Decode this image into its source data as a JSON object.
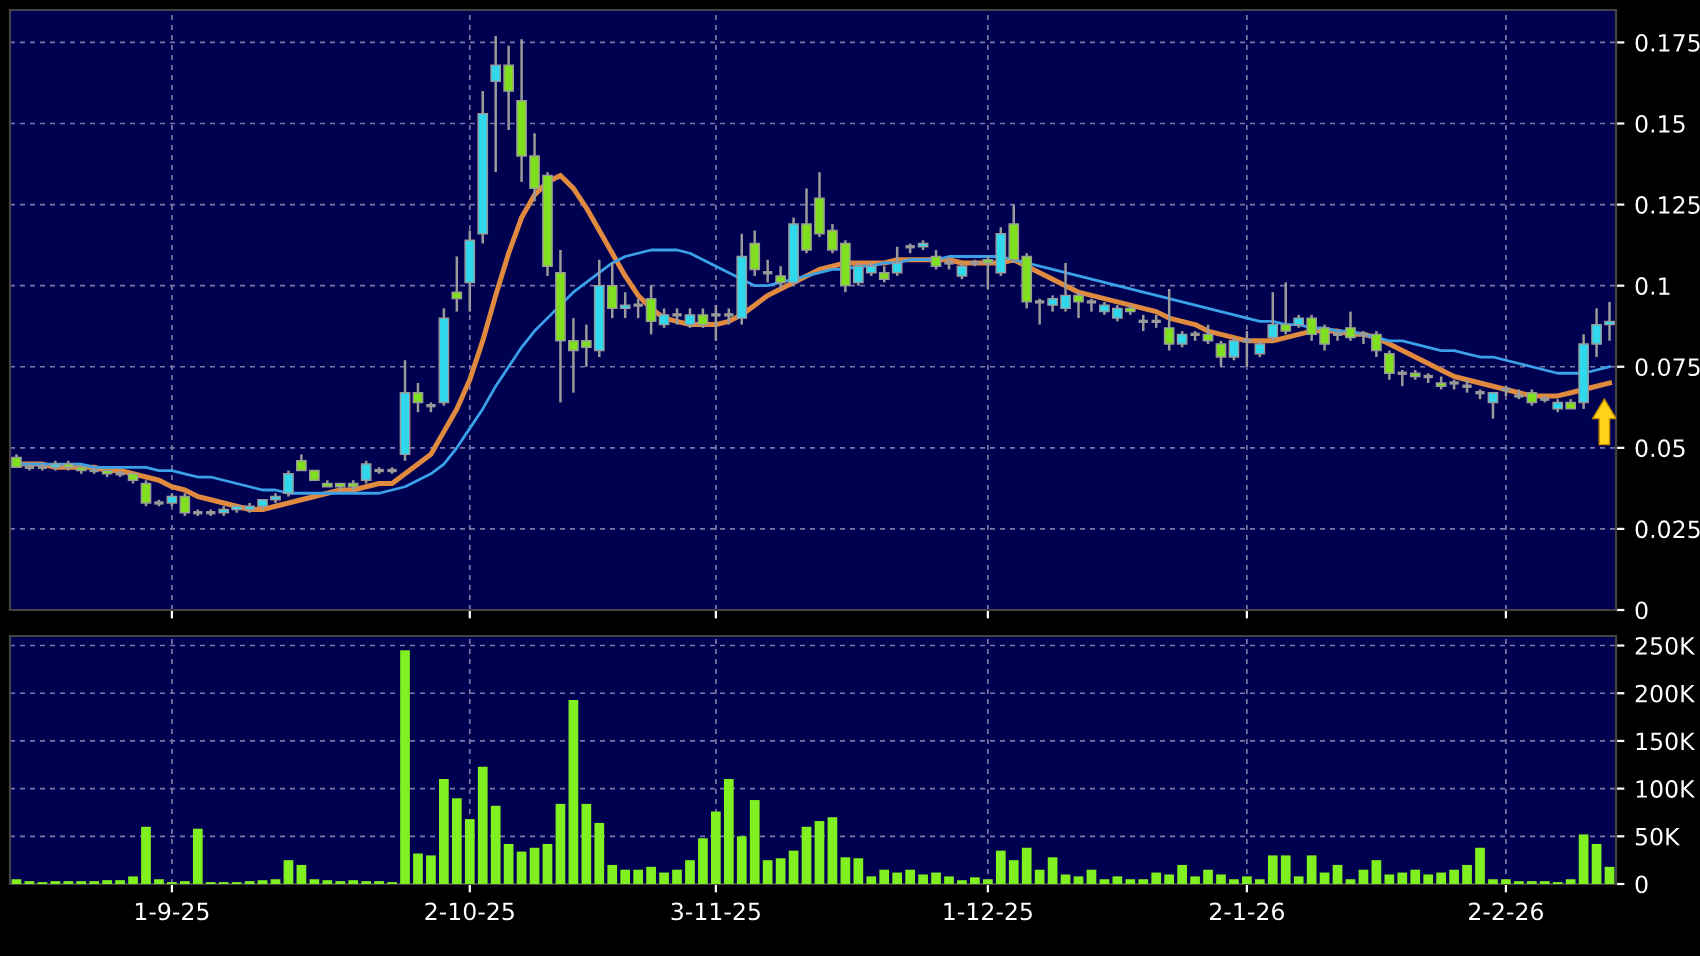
{
  "chart_data": [
    {
      "type": "candlestick",
      "categories": [
        null,
        null,
        null,
        null,
        null,
        null,
        null,
        null,
        null,
        null,
        null,
        null,
        null,
        null,
        null,
        null,
        null,
        null,
        null,
        null,
        null,
        null,
        null,
        null,
        null,
        null,
        null,
        null,
        null,
        null,
        null,
        null,
        null,
        null,
        null,
        null,
        null,
        null,
        null,
        null,
        null,
        null,
        null,
        null,
        null,
        null,
        null,
        null,
        null,
        null,
        null,
        null,
        null,
        null,
        null,
        null,
        null,
        null,
        null,
        null,
        null,
        null,
        null,
        null,
        null,
        null,
        null,
        null,
        null,
        null,
        null,
        null,
        null,
        null,
        null,
        null,
        null,
        null,
        null,
        null,
        null,
        null,
        null,
        null,
        null,
        null,
        null,
        null,
        null,
        null,
        null,
        null,
        null,
        null,
        null,
        null,
        null,
        null,
        null,
        null,
        null,
        null,
        null,
        null,
        null,
        null,
        null,
        null,
        null,
        null,
        null,
        null,
        null,
        null,
        null,
        null,
        null,
        null,
        null,
        null,
        null,
        null,
        null,
        null
      ],
      "ohlc": [
        [
          0.047,
          0.048,
          0.044,
          0.044
        ],
        [
          0.044,
          0.045,
          0.043,
          0.044
        ],
        [
          0.044,
          0.045,
          0.043,
          0.044
        ],
        [
          0.044,
          0.046,
          0.043,
          0.045
        ],
        [
          0.045,
          0.046,
          0.043,
          0.044
        ],
        [
          0.044,
          0.044,
          0.042,
          0.043
        ],
        [
          0.043,
          0.044,
          0.042,
          0.043
        ],
        [
          0.043,
          0.043,
          0.041,
          0.042
        ],
        [
          0.042,
          0.043,
          0.041,
          0.042
        ],
        [
          0.042,
          0.042,
          0.039,
          0.04
        ],
        [
          0.039,
          0.04,
          0.032,
          0.033
        ],
        [
          0.033,
          0.034,
          0.032,
          0.033
        ],
        [
          0.033,
          0.036,
          0.032,
          0.035
        ],
        [
          0.035,
          0.036,
          0.029,
          0.03
        ],
        [
          0.03,
          0.031,
          0.029,
          0.03
        ],
        [
          0.03,
          0.031,
          0.029,
          0.03
        ],
        [
          0.03,
          0.032,
          0.029,
          0.031
        ],
        [
          0.031,
          0.032,
          0.03,
          0.032
        ],
        [
          0.031,
          0.033,
          0.03,
          0.032
        ],
        [
          0.032,
          0.034,
          0.031,
          0.034
        ],
        [
          0.034,
          0.036,
          0.033,
          0.035
        ],
        [
          0.036,
          0.043,
          0.035,
          0.042
        ],
        [
          0.046,
          0.048,
          0.043,
          0.043
        ],
        [
          0.043,
          0.043,
          0.04,
          0.04
        ],
        [
          0.039,
          0.04,
          0.038,
          0.038
        ],
        [
          0.039,
          0.039,
          0.037,
          0.038
        ],
        [
          0.039,
          0.04,
          0.037,
          0.038
        ],
        [
          0.04,
          0.046,
          0.039,
          0.045
        ],
        [
          0.043,
          0.044,
          0.042,
          0.043
        ],
        [
          0.043,
          0.044,
          0.042,
          0.043
        ],
        [
          0.048,
          0.077,
          0.046,
          0.067
        ],
        [
          0.067,
          0.07,
          0.061,
          0.064
        ],
        [
          0.063,
          0.064,
          0.061,
          0.063
        ],
        [
          0.064,
          0.093,
          0.063,
          0.09
        ],
        [
          0.098,
          0.109,
          0.092,
          0.096
        ],
        [
          0.101,
          0.117,
          0.092,
          0.114
        ],
        [
          0.116,
          0.16,
          0.113,
          0.153
        ],
        [
          0.163,
          0.177,
          0.135,
          0.168
        ],
        [
          0.168,
          0.174,
          0.148,
          0.16
        ],
        [
          0.157,
          0.176,
          0.132,
          0.14
        ],
        [
          0.14,
          0.147,
          0.126,
          0.13
        ],
        [
          0.134,
          0.135,
          0.103,
          0.106
        ],
        [
          0.104,
          0.111,
          0.064,
          0.083
        ],
        [
          0.083,
          0.09,
          0.067,
          0.08
        ],
        [
          0.083,
          0.088,
          0.075,
          0.081
        ],
        [
          0.08,
          0.108,
          0.078,
          0.1
        ],
        [
          0.1,
          0.107,
          0.09,
          0.093
        ],
        [
          0.093,
          0.098,
          0.09,
          0.094
        ],
        [
          0.094,
          0.096,
          0.09,
          0.094
        ],
        [
          0.096,
          0.1,
          0.085,
          0.089
        ],
        [
          0.088,
          0.093,
          0.087,
          0.091
        ],
        [
          0.091,
          0.093,
          0.088,
          0.091
        ],
        [
          0.088,
          0.093,
          0.087,
          0.091
        ],
        [
          0.091,
          0.093,
          0.087,
          0.088
        ],
        [
          0.091,
          0.094,
          0.083,
          0.091
        ],
        [
          0.091,
          0.093,
          0.088,
          0.091
        ],
        [
          0.09,
          0.116,
          0.088,
          0.109
        ],
        [
          0.113,
          0.117,
          0.103,
          0.105
        ],
        [
          0.104,
          0.108,
          0.101,
          0.104
        ],
        [
          0.103,
          0.106,
          0.099,
          0.101
        ],
        [
          0.101,
          0.121,
          0.1,
          0.119
        ],
        [
          0.119,
          0.13,
          0.11,
          0.111
        ],
        [
          0.127,
          0.135,
          0.115,
          0.116
        ],
        [
          0.117,
          0.119,
          0.11,
          0.111
        ],
        [
          0.113,
          0.114,
          0.098,
          0.1
        ],
        [
          0.101,
          0.107,
          0.1,
          0.106
        ],
        [
          0.104,
          0.107,
          0.103,
          0.106
        ],
        [
          0.104,
          0.106,
          0.101,
          0.102
        ],
        [
          0.104,
          0.112,
          0.103,
          0.107
        ],
        [
          0.112,
          0.113,
          0.11,
          0.112
        ],
        [
          0.112,
          0.114,
          0.111,
          0.113
        ],
        [
          0.109,
          0.111,
          0.105,
          0.106
        ],
        [
          0.107,
          0.109,
          0.105,
          0.107
        ],
        [
          0.103,
          0.107,
          0.102,
          0.106
        ],
        [
          0.107,
          0.108,
          0.106,
          0.107
        ],
        [
          0.108,
          0.109,
          0.099,
          0.107
        ],
        [
          0.104,
          0.118,
          0.103,
          0.116
        ],
        [
          0.119,
          0.125,
          0.107,
          0.108
        ],
        [
          0.109,
          0.11,
          0.093,
          0.095
        ],
        [
          0.095,
          0.096,
          0.088,
          0.095
        ],
        [
          0.094,
          0.097,
          0.092,
          0.096
        ],
        [
          0.093,
          0.107,
          0.092,
          0.097
        ],
        [
          0.097,
          0.098,
          0.09,
          0.095
        ],
        [
          0.095,
          0.096,
          0.092,
          0.095
        ],
        [
          0.092,
          0.095,
          0.091,
          0.094
        ],
        [
          0.09,
          0.094,
          0.089,
          0.093
        ],
        [
          0.093,
          0.094,
          0.091,
          0.092
        ],
        [
          0.089,
          0.091,
          0.086,
          0.089
        ],
        [
          0.089,
          0.091,
          0.087,
          0.089
        ],
        [
          0.087,
          0.099,
          0.08,
          0.082
        ],
        [
          0.082,
          0.086,
          0.081,
          0.085
        ],
        [
          0.085,
          0.086,
          0.083,
          0.085
        ],
        [
          0.085,
          0.088,
          0.082,
          0.083
        ],
        [
          0.082,
          0.083,
          0.075,
          0.078
        ],
        [
          0.078,
          0.084,
          0.077,
          0.083
        ],
        [
          0.083,
          0.086,
          0.075,
          0.083
        ],
        [
          0.079,
          0.083,
          0.078,
          0.082
        ],
        [
          0.084,
          0.098,
          0.083,
          0.088
        ],
        [
          0.088,
          0.101,
          0.085,
          0.086
        ],
        [
          0.088,
          0.091,
          0.087,
          0.09
        ],
        [
          0.09,
          0.091,
          0.083,
          0.085
        ],
        [
          0.087,
          0.088,
          0.08,
          0.082
        ],
        [
          0.085,
          0.086,
          0.083,
          0.085
        ],
        [
          0.087,
          0.092,
          0.083,
          0.084
        ],
        [
          0.085,
          0.086,
          0.082,
          0.085
        ],
        [
          0.085,
          0.086,
          0.078,
          0.08
        ],
        [
          0.079,
          0.08,
          0.071,
          0.073
        ],
        [
          0.073,
          0.074,
          0.069,
          0.073
        ],
        [
          0.073,
          0.074,
          0.071,
          0.072
        ],
        [
          0.072,
          0.073,
          0.07,
          0.072
        ],
        [
          0.07,
          0.072,
          0.068,
          0.069
        ],
        [
          0.07,
          0.071,
          0.068,
          0.07
        ],
        [
          0.069,
          0.071,
          0.067,
          0.069
        ],
        [
          0.067,
          0.068,
          0.065,
          0.067
        ],
        [
          0.064,
          0.067,
          0.059,
          0.067
        ],
        [
          0.068,
          0.069,
          0.066,
          0.068
        ],
        [
          0.066,
          0.068,
          0.065,
          0.066
        ],
        [
          0.067,
          0.068,
          0.063,
          0.064
        ],
        [
          0.065,
          0.066,
          0.064,
          0.065
        ],
        [
          0.062,
          0.065,
          0.061,
          0.064
        ],
        [
          0.064,
          0.065,
          0.062,
          0.062
        ],
        [
          0.064,
          0.085,
          0.062,
          0.082
        ],
        [
          0.082,
          0.093,
          0.078,
          0.088
        ],
        [
          0.088,
          0.095,
          0.083,
          0.089
        ]
      ],
      "colors": [
        "#80e020",
        "#999999",
        "#999999",
        "#30d8ee",
        "#80e020",
        "#80e020",
        "#999999",
        "#80e020",
        "#999999",
        "#80e020",
        "#80e020",
        "#999999",
        "#30d8ee",
        "#80e020",
        "#999999",
        "#999999",
        "#30d8ee",
        "#30d8ee",
        "#30d8ee",
        "#30d8ee",
        "#30d8ee",
        "#30d8ee",
        "#80e020",
        "#80e020",
        "#80e020",
        "#80e020",
        "#80e020",
        "#30d8ee",
        "#999999",
        "#999999",
        "#30d8ee",
        "#80e020",
        "#999999",
        "#30d8ee",
        "#80e020",
        "#30d8ee",
        "#30d8ee",
        "#30d8ee",
        "#80e020",
        "#80e020",
        "#80e020",
        "#80e020",
        "#80e020",
        "#80e020",
        "#80e020",
        "#30d8ee",
        "#80e020",
        "#30d8ee",
        "#999999",
        "#80e020",
        "#30d8ee",
        "#999999",
        "#30d8ee",
        "#80e020",
        "#999999",
        "#999999",
        "#30d8ee",
        "#80e020",
        "#999999",
        "#80e020",
        "#30d8ee",
        "#80e020",
        "#80e020",
        "#80e020",
        "#80e020",
        "#30d8ee",
        "#30d8ee",
        "#80e020",
        "#30d8ee",
        "#999999",
        "#30d8ee",
        "#80e020",
        "#999999",
        "#30d8ee",
        "#999999",
        "#80e020",
        "#30d8ee",
        "#80e020",
        "#80e020",
        "#999999",
        "#30d8ee",
        "#30d8ee",
        "#80e020",
        "#999999",
        "#30d8ee",
        "#30d8ee",
        "#80e020",
        "#999999",
        "#999999",
        "#80e020",
        "#30d8ee",
        "#999999",
        "#80e020",
        "#80e020",
        "#30d8ee",
        "#999999",
        "#30d8ee",
        "#30d8ee",
        "#80e020",
        "#30d8ee",
        "#80e020",
        "#80e020",
        "#999999",
        "#80e020",
        "#999999",
        "#80e020",
        "#80e020",
        "#999999",
        "#80e020",
        "#999999",
        "#80e020",
        "#999999",
        "#999999",
        "#999999",
        "#30d8ee",
        "#999999",
        "#999999",
        "#80e020",
        "#999999",
        "#30d8ee",
        "#80e020",
        "#30d8ee",
        "#30d8ee",
        "#30d8ee"
      ],
      "series": [
        {
          "type": "line",
          "color": "#e08a40",
          "values": [
            0.045,
            0.045,
            0.045,
            0.044,
            0.044,
            0.044,
            0.044,
            0.043,
            0.043,
            0.042,
            0.041,
            0.04,
            0.038,
            0.037,
            0.035,
            0.034,
            0.033,
            0.032,
            0.031,
            0.031,
            0.032,
            0.033,
            0.034,
            0.035,
            0.036,
            0.037,
            0.037,
            0.038,
            0.039,
            0.039,
            0.042,
            0.045,
            0.048,
            0.055,
            0.062,
            0.071,
            0.083,
            0.097,
            0.11,
            0.121,
            0.128,
            0.132,
            0.134,
            0.13,
            0.124,
            0.117,
            0.11,
            0.103,
            0.097,
            0.093,
            0.09,
            0.089,
            0.088,
            0.088,
            0.088,
            0.089,
            0.091,
            0.094,
            0.097,
            0.099,
            0.101,
            0.103,
            0.105,
            0.106,
            0.107,
            0.107,
            0.107,
            0.107,
            0.108,
            0.108,
            0.108,
            0.108,
            0.108,
            0.107,
            0.107,
            0.107,
            0.107,
            0.108,
            0.106,
            0.104,
            0.102,
            0.1,
            0.098,
            0.097,
            0.096,
            0.095,
            0.094,
            0.093,
            0.092,
            0.09,
            0.089,
            0.088,
            0.086,
            0.085,
            0.084,
            0.083,
            0.083,
            0.083,
            0.084,
            0.085,
            0.086,
            0.086,
            0.086,
            0.085,
            0.085,
            0.084,
            0.082,
            0.08,
            0.078,
            0.076,
            0.074,
            0.072,
            0.071,
            0.07,
            0.069,
            0.068,
            0.067,
            0.066,
            0.066,
            0.066,
            0.067,
            0.068,
            0.069,
            0.07
          ]
        },
        {
          "type": "line",
          "color": "#3aa0e8",
          "values": [
            0.045,
            0.045,
            0.045,
            0.045,
            0.045,
            0.045,
            0.044,
            0.044,
            0.044,
            0.044,
            0.044,
            0.043,
            0.043,
            0.042,
            0.041,
            0.041,
            0.04,
            0.039,
            0.038,
            0.037,
            0.037,
            0.036,
            0.036,
            0.036,
            0.036,
            0.036,
            0.036,
            0.036,
            0.036,
            0.037,
            0.038,
            0.04,
            0.042,
            0.045,
            0.05,
            0.056,
            0.062,
            0.069,
            0.075,
            0.081,
            0.086,
            0.09,
            0.094,
            0.098,
            0.101,
            0.104,
            0.107,
            0.109,
            0.11,
            0.111,
            0.111,
            0.111,
            0.11,
            0.108,
            0.106,
            0.104,
            0.102,
            0.1,
            0.1,
            0.101,
            0.102,
            0.103,
            0.104,
            0.105,
            0.105,
            0.106,
            0.106,
            0.107,
            0.107,
            0.108,
            0.108,
            0.108,
            0.109,
            0.109,
            0.109,
            0.109,
            0.109,
            0.108,
            0.107,
            0.106,
            0.105,
            0.104,
            0.103,
            0.102,
            0.101,
            0.1,
            0.099,
            0.098,
            0.097,
            0.096,
            0.095,
            0.094,
            0.093,
            0.092,
            0.091,
            0.09,
            0.089,
            0.089,
            0.088,
            0.088,
            0.087,
            0.087,
            0.086,
            0.086,
            0.085,
            0.084,
            0.083,
            0.083,
            0.082,
            0.081,
            0.08,
            0.08,
            0.079,
            0.078,
            0.078,
            0.077,
            0.076,
            0.075,
            0.074,
            0.073,
            0.073,
            0.073,
            0.074,
            0.075
          ]
        }
      ],
      "ylim": [
        0,
        0.185
      ],
      "yticks": [
        0,
        0.025,
        0.05,
        0.075,
        0.1,
        0.125,
        0.15,
        0.175
      ],
      "grid": true,
      "tick_labels": "y"
    },
    {
      "type": "bar",
      "categories": [
        null,
        null,
        null,
        null,
        null,
        null,
        null,
        null,
        null,
        null,
        null,
        null,
        "1-9-25",
        null,
        null,
        null,
        null,
        null,
        null,
        null,
        null,
        null,
        null,
        null,
        null,
        null,
        null,
        null,
        null,
        null,
        null,
        null,
        null,
        null,
        null,
        "2-10-25",
        null,
        null,
        null,
        null,
        null,
        null,
        null,
        null,
        null,
        null,
        null,
        null,
        null,
        null,
        null,
        null,
        null,
        null,
        "3-11-25",
        null,
        null,
        null,
        null,
        null,
        null,
        null,
        null,
        null,
        null,
        null,
        null,
        null,
        null,
        null,
        null,
        null,
        null,
        null,
        null,
        "1-12-25",
        null,
        null,
        null,
        null,
        null,
        null,
        null,
        null,
        null,
        null,
        null,
        null,
        null,
        null,
        null,
        null,
        null,
        null,
        null,
        "2-1-26",
        null,
        null,
        null,
        null,
        null,
        null,
        null,
        null,
        null,
        null,
        null,
        null,
        null,
        null,
        null,
        null,
        null,
        null,
        null,
        "2-2-26",
        null,
        null,
        null,
        null,
        null,
        null,
        null,
        null
      ],
      "values": [
        5000,
        3000,
        2000,
        3000,
        3000,
        3000,
        3000,
        4000,
        4000,
        8000,
        60000,
        5000,
        2000,
        3000,
        58000,
        2000,
        2000,
        2000,
        3000,
        4000,
        5000,
        25000,
        20000,
        5000,
        4000,
        3000,
        4000,
        3000,
        3000,
        2000,
        245000,
        32000,
        30000,
        110000,
        90000,
        68000,
        123000,
        82000,
        42000,
        34000,
        38000,
        42000,
        84000,
        193000,
        84000,
        64000,
        20000,
        15000,
        15000,
        18000,
        12000,
        15000,
        25000,
        48000,
        76000,
        110000,
        50000,
        88000,
        25000,
        27000,
        35000,
        60000,
        66000,
        70000,
        28000,
        27000,
        8000,
        15000,
        12000,
        15000,
        10000,
        12000,
        8000,
        4000,
        7000,
        5000,
        35000,
        25000,
        38000,
        15000,
        28000,
        10000,
        8000,
        15000,
        5000,
        8000,
        5000,
        5000,
        12000,
        10000,
        20000,
        8000,
        15000,
        10000,
        5000,
        8000,
        5000,
        30000,
        30000,
        8000,
        30000,
        12000,
        20000,
        5000,
        15000,
        25000,
        10000,
        12000,
        15000,
        10000,
        12000,
        15000,
        20000,
        38000,
        5000,
        5000,
        3000,
        3000,
        3000,
        2000,
        5000,
        52000,
        42000,
        18000
      ],
      "color": "#80f020",
      "ylim": [
        0,
        260000
      ],
      "yticks": [
        0,
        {
          "value": 50000,
          "label": "50K"
        },
        {
          "value": 100000,
          "label": "100K"
        },
        {
          "value": 150000,
          "label": "150K"
        },
        {
          "value": 200000,
          "label": "200K"
        },
        {
          "value": 250000,
          "label": "250K"
        }
      ],
      "grid": true
    }
  ]
}
